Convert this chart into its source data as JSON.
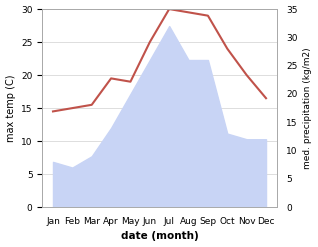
{
  "months": [
    "Jan",
    "Feb",
    "Mar",
    "Apr",
    "May",
    "Jun",
    "Jul",
    "Aug",
    "Sep",
    "Oct",
    "Nov",
    "Dec"
  ],
  "temperature": [
    14.5,
    15.0,
    15.5,
    19.5,
    19.0,
    25.0,
    30.0,
    29.5,
    29.0,
    24.0,
    20.0,
    16.5
  ],
  "precipitation": [
    8,
    7,
    9,
    14,
    20,
    26,
    32,
    26,
    26,
    13,
    12,
    12
  ],
  "temp_color": "#c0524a",
  "precip_fill_color": "#c8d4f5",
  "temp_ylim": [
    0,
    30
  ],
  "precip_ylim": [
    0,
    35
  ],
  "temp_yticks": [
    0,
    5,
    10,
    15,
    20,
    25,
    30
  ],
  "precip_yticks": [
    0,
    5,
    10,
    15,
    20,
    25,
    30,
    35
  ],
  "xlabel": "date (month)",
  "ylabel_left": "max temp (C)",
  "ylabel_right": "med. precipitation (kg/m2)",
  "bg_color": "#ffffff",
  "grid_color": "#d0d0d0"
}
